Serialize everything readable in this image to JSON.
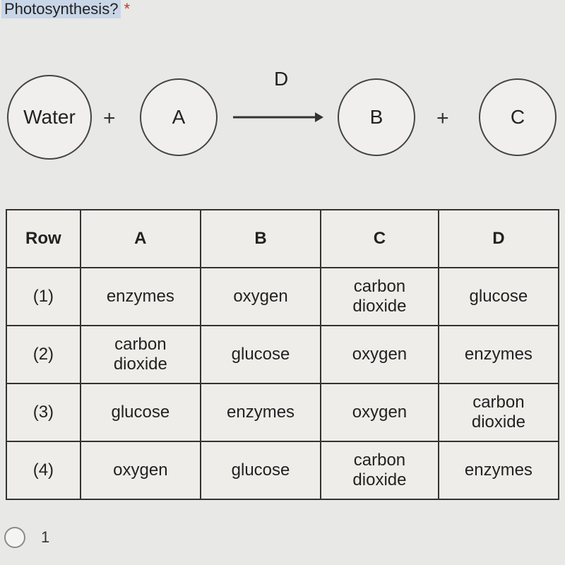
{
  "header": {
    "title": "Photosynthesis?",
    "required_marker": "*"
  },
  "diagram": {
    "circle_water": "Water",
    "circle_a": "A",
    "circle_b": "B",
    "circle_c": "C",
    "d_label": "D",
    "plus": "+",
    "arrow_color": "#333333",
    "circle_border": "#444444",
    "circle_fill": "#f0efed"
  },
  "table": {
    "columns": [
      "Row",
      "A",
      "B",
      "C",
      "D"
    ],
    "rows": [
      {
        "row": "(1)",
        "a": "enzymes",
        "b": "oxygen",
        "c": "carbon\ndioxide",
        "d": "glucose"
      },
      {
        "row": "(2)",
        "a": "carbon\ndioxide",
        "b": "glucose",
        "c": "oxygen",
        "d": "enzymes"
      },
      {
        "row": "(3)",
        "a": "glucose",
        "b": "enzymes",
        "c": "oxygen",
        "d": "carbon\ndioxide"
      },
      {
        "row": "(4)",
        "a": "oxygen",
        "b": "glucose",
        "c": "carbon\ndioxide",
        "d": "enzymes"
      }
    ],
    "border_color": "#333333",
    "cell_bg": "#eeede9",
    "header_fontsize": 24,
    "cell_fontsize": 24
  },
  "option": {
    "label": "1"
  },
  "colors": {
    "page_bg": "#e8e8e6",
    "highlight_bg": "#c9d6e8",
    "asterisk": "#c0392b",
    "text": "#222222"
  }
}
